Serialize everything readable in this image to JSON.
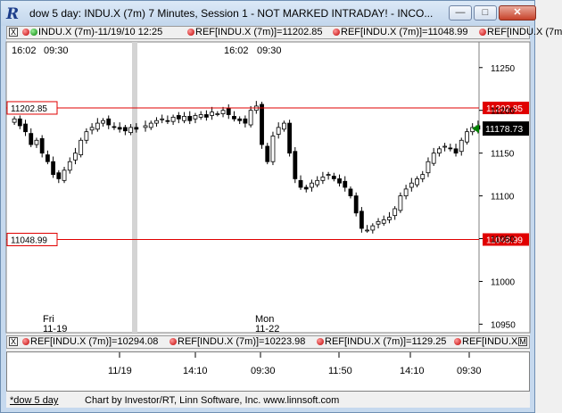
{
  "window": {
    "title": "dow 5 day: INDU.X (7m) 7 Minutes, Session 1 - NOT MARKED INTRADAY! - INCO...",
    "minimize_glyph": "—",
    "maximize_glyph": "□",
    "close_glyph": "✕",
    "app_icon_glyph": "R"
  },
  "top_legend": {
    "series": "INDU.X (7m)-11/19/10 12:25",
    "ref1": "REF[INDU.X (7m)]=11202.85",
    "ref2": "REF[INDU.X (7m)]=11048.99",
    "ref3": "REF[INDU.X (7m"
  },
  "bottom_legend": {
    "ref1": "REF[INDU.X (7m)]=10294.08",
    "ref2": "REF[INDU.X (7m)]=10223.98",
    "ref3": "REF[INDU.X (7m)]=1129.25",
    "ref4": "REF[INDU.X"
  },
  "legend_buttons": {
    "close": "X",
    "menu": "M"
  },
  "chart": {
    "top_time_labels": [
      {
        "text": "16:02",
        "at": "left"
      },
      {
        "text": "09:30",
        "at": "left2"
      },
      {
        "text": "16:02",
        "at": "mid"
      },
      {
        "text": "09:30",
        "at": "mid2"
      }
    ],
    "day_labels": [
      {
        "day": "Fri",
        "date": "11-19"
      },
      {
        "day": "Mon",
        "date": "11-22"
      }
    ],
    "ref_lines": [
      {
        "label": "11202.85",
        "value": 11202.85,
        "color": "#e00000"
      },
      {
        "label": "11048.99",
        "value": 11048.99,
        "color": "#e00000"
      }
    ],
    "last_price": {
      "label": "11178.73",
      "value": 11178.73
    },
    "colors": {
      "up": "#ffffff",
      "down": "#000000",
      "ref": "#e00000",
      "last_bg": "#000000"
    }
  },
  "chart_data": {
    "type": "candlestick",
    "y_ticks": [
      11250,
      11200,
      11150,
      11100,
      11050,
      11000,
      10950
    ],
    "ylim": [
      10940,
      11280
    ],
    "x_ticks": [
      "11/19",
      "14:10",
      "09:30",
      "11:50",
      "14:10",
      "09:30"
    ],
    "series_close": [
      11190,
      11182,
      11175,
      11160,
      11165,
      11150,
      11140,
      11125,
      11120,
      11130,
      11140,
      11150,
      11165,
      11175,
      11180,
      11185,
      11188,
      11183,
      11180,
      11178,
      11176,
      11180,
      11178,
      11182,
      11185,
      11188,
      11190,
      11187,
      11192,
      11190,
      11193,
      11188,
      11194,
      11195,
      11192,
      11198,
      11196,
      11200,
      11195,
      11190,
      11188,
      11185,
      11200,
      11205,
      11160,
      11140,
      11170,
      11180,
      11185,
      11150,
      11120,
      11110,
      11108,
      11115,
      11118,
      11122,
      11125,
      11120,
      11115,
      11110,
      11100,
      11080,
      11062,
      11060,
      11065,
      11070,
      11072,
      11075,
      11085,
      11100,
      11108,
      11115,
      11120,
      11125,
      11140,
      11150,
      11155,
      11158,
      11155,
      11150,
      11165,
      11175,
      11180,
      11178
    ]
  },
  "time_axis": {
    "labels": [
      "11/19",
      "14:10",
      "09:30",
      "11:50",
      "14:10",
      "09:30"
    ]
  },
  "statusbar": {
    "tab": "*dow 5 day",
    "credit": "Chart by Investor/RT, Linn Software, Inc. www.linnsoft.com"
  }
}
